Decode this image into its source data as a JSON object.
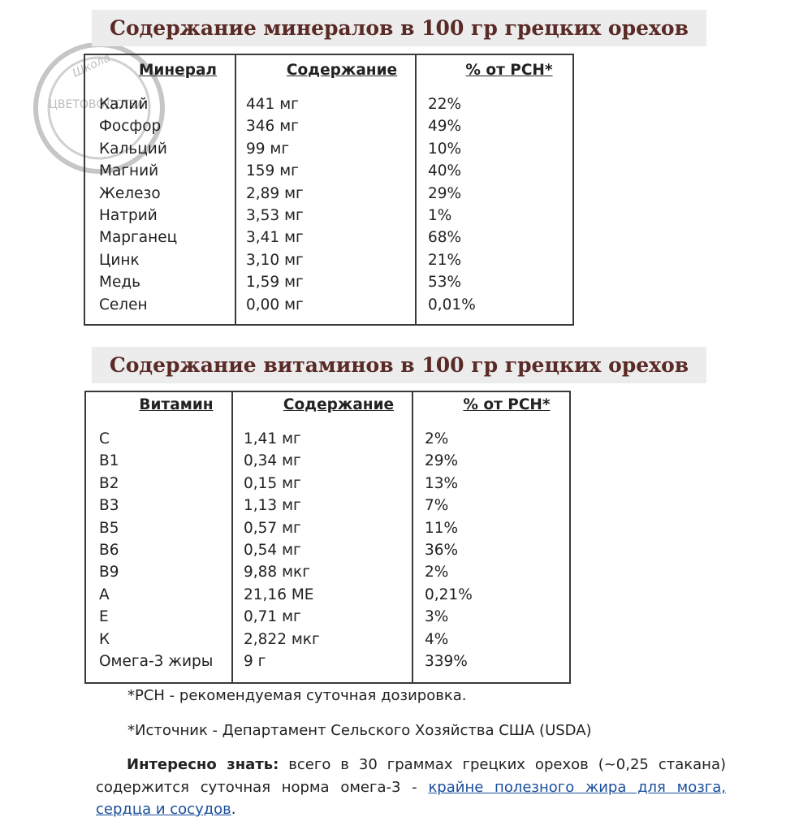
{
  "watermark": {
    "top": "Школа",
    "main": "ЦВЕТОВОДСТВА"
  },
  "sections": [
    {
      "title": "Содержание минералов в 100 гр грецких орехов",
      "table": {
        "header": [
          "Минерал",
          "Содержание",
          "% от РСН*"
        ],
        "rows": [
          [
            "Калий",
            "441 мг",
            "22%"
          ],
          [
            "Фосфор",
            "346 мг",
            "49%"
          ],
          [
            "Кальций",
            "99 мг",
            "10%"
          ],
          [
            "Магний",
            "159 мг",
            "40%"
          ],
          [
            "Железо",
            "2,89 мг",
            "29%"
          ],
          [
            "Натрий",
            "3,53 мг",
            "1%"
          ],
          [
            "Марганец",
            "3,41 мг",
            "68%"
          ],
          [
            "Цинк",
            "3,10 мг",
            "21%"
          ],
          [
            "Медь",
            "1,59 мг",
            "53%"
          ],
          [
            "Селен",
            "0,00 мг",
            "0,01%"
          ]
        ]
      }
    },
    {
      "title": "Содержание витаминов в 100 гр грецких орехов",
      "table": {
        "header": [
          "Витамин",
          "Содержание",
          "% от РСН*"
        ],
        "rows": [
          [
            "С",
            "1,41 мг",
            "2%"
          ],
          [
            "В1",
            "0,34 мг",
            "29%"
          ],
          [
            "В2",
            "0,15 мг",
            "13%"
          ],
          [
            "В3",
            "1,13 мг",
            "7%"
          ],
          [
            "В5",
            "0,57 мг",
            "11%"
          ],
          [
            "В6",
            "0,54 мг",
            "36%"
          ],
          [
            "В9",
            "9,88 мкг",
            "2%"
          ],
          [
            "А",
            "21,16 МЕ",
            "0,21%"
          ],
          [
            "Е",
            "0,71 мг",
            "3%"
          ],
          [
            "К",
            "2,822 мкг",
            "4%"
          ],
          [
            "Омега-3 жиры",
            "9 г",
            "339%"
          ]
        ]
      }
    }
  ],
  "footnotes": [
    "*РСН - рекомендуемая суточная дозировка.",
    "*Источник - Департамент Сельского Хозяйства США (USDA)"
  ],
  "fact": {
    "label": "Интересно знать:",
    "text": "всего в 30 граммах грецких орехов (~0,25 стакана) содержится суточная норма омега-3 -",
    "link": "крайне полезного жира для мозга, сердца и сосудов",
    "end": "."
  }
}
